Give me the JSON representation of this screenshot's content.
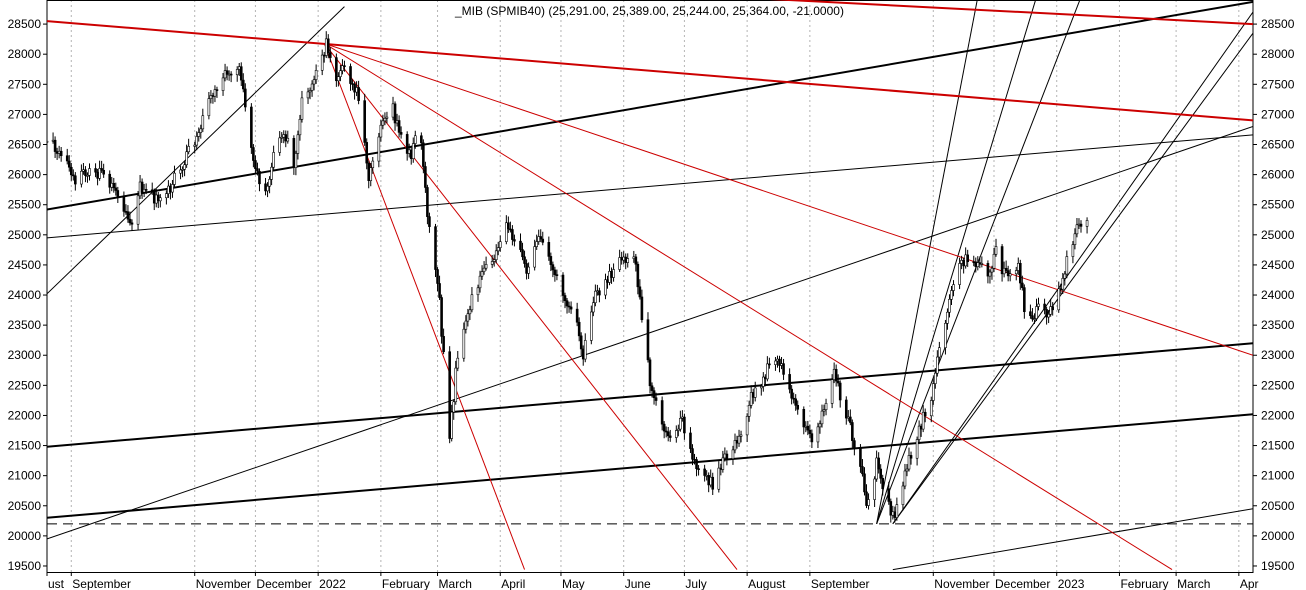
{
  "chart_data": {
    "type": "candlestick",
    "title": "_MIB (SPMIB40) (25,291.00, 25,389.00, 25,244.00, 25,364.00, -21.0000)",
    "ohlc": {
      "open": 25291,
      "high": 25389,
      "low": 25244,
      "close": 25364,
      "change": -21
    },
    "ylim": [
      19400,
      28900
    ],
    "y_ticks": [
      19500,
      20000,
      20500,
      21000,
      21500,
      22000,
      22500,
      23000,
      23500,
      24000,
      24500,
      25000,
      25500,
      26000,
      26500,
      27000,
      27500,
      28000,
      28500
    ],
    "x_axis": {
      "start": "2021-08-20",
      "end": "2023-04-08",
      "labels": [
        {
          "date": "2021-08-20",
          "label": "ust"
        },
        {
          "date": "2021-09-01",
          "label": "September"
        },
        {
          "date": "2021-11-01",
          "label": "November"
        },
        {
          "date": "2021-12-01",
          "label": "December"
        },
        {
          "date": "2022-01-01",
          "label": "2022"
        },
        {
          "date": "2022-02-01",
          "label": "February"
        },
        {
          "date": "2022-03-01",
          "label": "March"
        },
        {
          "date": "2022-04-01",
          "label": "April"
        },
        {
          "date": "2022-05-01",
          "label": "May"
        },
        {
          "date": "2022-06-01",
          "label": "June"
        },
        {
          "date": "2022-07-01",
          "label": "July"
        },
        {
          "date": "2022-08-01",
          "label": "August"
        },
        {
          "date": "2022-09-01",
          "label": "September"
        },
        {
          "date": "2022-11-01",
          "label": "November"
        },
        {
          "date": "2022-12-01",
          "label": "December"
        },
        {
          "date": "2023-01-01",
          "label": "2023"
        },
        {
          "date": "2023-02-01",
          "label": "February"
        },
        {
          "date": "2023-03-01",
          "label": "March"
        },
        {
          "date": "2023-04-01",
          "label": "Apr"
        }
      ]
    },
    "grid": {
      "vertical": "dashed",
      "horizontal": false
    },
    "reference_level": 20200,
    "price_path": [
      {
        "date": "2021-08-20",
        "close": 26550
      },
      {
        "date": "2021-08-27",
        "close": 26350
      },
      {
        "date": "2021-09-03",
        "close": 25900
      },
      {
        "date": "2021-09-10",
        "close": 26100
      },
      {
        "date": "2021-09-17",
        "close": 25950
      },
      {
        "date": "2021-09-24",
        "close": 25700
      },
      {
        "date": "2021-09-30",
        "close": 25100
      },
      {
        "date": "2021-10-05",
        "close": 25800
      },
      {
        "date": "2021-10-12",
        "close": 25600
      },
      {
        "date": "2021-10-20",
        "close": 25800
      },
      {
        "date": "2021-10-28",
        "close": 26300
      },
      {
        "date": "2021-11-03",
        "close": 26700
      },
      {
        "date": "2021-11-10",
        "close": 27400
      },
      {
        "date": "2021-11-17",
        "close": 27700
      },
      {
        "date": "2021-11-23",
        "close": 27850
      },
      {
        "date": "2021-11-26",
        "close": 27100
      },
      {
        "date": "2021-12-01",
        "close": 26100
      },
      {
        "date": "2021-12-06",
        "close": 25700
      },
      {
        "date": "2021-12-10",
        "close": 26300
      },
      {
        "date": "2021-12-15",
        "close": 26700
      },
      {
        "date": "2021-12-20",
        "close": 26200
      },
      {
        "date": "2021-12-24",
        "close": 27200
      },
      {
        "date": "2021-12-31",
        "close": 27700
      },
      {
        "date": "2022-01-05",
        "close": 28150
      },
      {
        "date": "2022-01-10",
        "close": 27600
      },
      {
        "date": "2022-01-14",
        "close": 27800
      },
      {
        "date": "2022-01-20",
        "close": 27400
      },
      {
        "date": "2022-01-26",
        "close": 26000
      },
      {
        "date": "2022-02-01",
        "close": 26800
      },
      {
        "date": "2022-02-07",
        "close": 27100
      },
      {
        "date": "2022-02-10",
        "close": 26700
      },
      {
        "date": "2022-02-16",
        "close": 26300
      },
      {
        "date": "2022-02-20",
        "close": 27000
      },
      {
        "date": "2022-02-24",
        "close": 25400
      },
      {
        "date": "2022-03-01",
        "close": 24300
      },
      {
        "date": "2022-03-07",
        "close": 21600
      },
      {
        "date": "2022-03-10",
        "close": 22700
      },
      {
        "date": "2022-03-16",
        "close": 23700
      },
      {
        "date": "2022-03-22",
        "close": 24300
      },
      {
        "date": "2022-03-28",
        "close": 24500
      },
      {
        "date": "2022-04-04",
        "close": 25100
      },
      {
        "date": "2022-04-08",
        "close": 24900
      },
      {
        "date": "2022-04-14",
        "close": 24400
      },
      {
        "date": "2022-04-20",
        "close": 24900
      },
      {
        "date": "2022-04-27",
        "close": 24500
      },
      {
        "date": "2022-05-03",
        "close": 24000
      },
      {
        "date": "2022-05-09",
        "close": 23500
      },
      {
        "date": "2022-05-12",
        "close": 23000
      },
      {
        "date": "2022-05-18",
        "close": 24000
      },
      {
        "date": "2022-05-25",
        "close": 24300
      },
      {
        "date": "2022-06-01",
        "close": 24600
      },
      {
        "date": "2022-06-07",
        "close": 24600
      },
      {
        "date": "2022-06-10",
        "close": 23500
      },
      {
        "date": "2022-06-14",
        "close": 22600
      },
      {
        "date": "2022-06-20",
        "close": 21900
      },
      {
        "date": "2022-06-24",
        "close": 21600
      },
      {
        "date": "2022-06-30",
        "close": 21900
      },
      {
        "date": "2022-07-05",
        "close": 21300
      },
      {
        "date": "2022-07-12",
        "close": 21000
      },
      {
        "date": "2022-07-15",
        "close": 20800
      },
      {
        "date": "2022-07-21",
        "close": 21300
      },
      {
        "date": "2022-07-28",
        "close": 21600
      },
      {
        "date": "2022-08-03",
        "close": 22300
      },
      {
        "date": "2022-08-10",
        "close": 22700
      },
      {
        "date": "2022-08-16",
        "close": 23000
      },
      {
        "date": "2022-08-22",
        "close": 22400
      },
      {
        "date": "2022-08-29",
        "close": 21900
      },
      {
        "date": "2022-09-02",
        "close": 21600
      },
      {
        "date": "2022-09-08",
        "close": 22100
      },
      {
        "date": "2022-09-13",
        "close": 22700
      },
      {
        "date": "2022-09-20",
        "close": 21900
      },
      {
        "date": "2022-09-26",
        "close": 21200
      },
      {
        "date": "2022-09-29",
        "close": 20400
      },
      {
        "date": "2022-10-04",
        "close": 21200
      },
      {
        "date": "2022-10-10",
        "close": 20500
      },
      {
        "date": "2022-10-13",
        "close": 20300
      },
      {
        "date": "2022-10-18",
        "close": 21000
      },
      {
        "date": "2022-10-25",
        "close": 21800
      },
      {
        "date": "2022-10-31",
        "close": 22300
      },
      {
        "date": "2022-11-04",
        "close": 23100
      },
      {
        "date": "2022-11-10",
        "close": 24100
      },
      {
        "date": "2022-11-15",
        "close": 24600
      },
      {
        "date": "2022-11-22",
        "close": 24500
      },
      {
        "date": "2022-11-28",
        "close": 24400
      },
      {
        "date": "2022-12-02",
        "close": 24700
      },
      {
        "date": "2022-12-07",
        "close": 24300
      },
      {
        "date": "2022-12-13",
        "close": 24500
      },
      {
        "date": "2022-12-16",
        "close": 23800
      },
      {
        "date": "2022-12-20",
        "close": 23500
      },
      {
        "date": "2022-12-23",
        "close": 23800
      },
      {
        "date": "2022-12-29",
        "close": 23700
      },
      {
        "date": "2023-01-03",
        "close": 24100
      },
      {
        "date": "2023-01-06",
        "close": 24600
      },
      {
        "date": "2023-01-11",
        "close": 25100
      },
      {
        "date": "2023-01-17",
        "close": 25364
      }
    ],
    "trend_lines": [
      {
        "color": "#000000",
        "width": 1,
        "from": {
          "date": "2021-08-20",
          "value": 24020
        },
        "to": {
          "date": "2022-01-14",
          "value": 28790
        }
      },
      {
        "color": "#000000",
        "width": 2,
        "from": {
          "date": "2021-08-20",
          "value": 25420
        },
        "to": {
          "date": "2023-04-08",
          "value": 28870
        }
      },
      {
        "color": "#000000",
        "width": 1,
        "from": {
          "date": "2021-08-20",
          "value": 24950
        },
        "to": {
          "date": "2023-04-08",
          "value": 26660
        }
      },
      {
        "color": "#000000",
        "width": 1,
        "from": {
          "date": "2021-08-20",
          "value": 19950
        },
        "to": {
          "date": "2023-04-08",
          "value": 26800
        }
      },
      {
        "color": "#000000",
        "width": 2,
        "from": {
          "date": "2021-08-20",
          "value": 21480
        },
        "to": {
          "date": "2023-04-08",
          "value": 23200
        }
      },
      {
        "color": "#000000",
        "width": 2,
        "from": {
          "date": "2021-08-20",
          "value": 20300
        },
        "to": {
          "date": "2023-04-08",
          "value": 22020
        }
      },
      {
        "color": "#000000",
        "width": 1,
        "from": {
          "date": "2022-10-12",
          "value": 19440
        },
        "to": {
          "date": "2023-04-08",
          "value": 20450
        }
      },
      {
        "color": "#000000",
        "width": 1,
        "from": {
          "date": "2022-10-04",
          "value": 20200
        },
        "to": {
          "date": "2022-11-23",
          "value": 28950
        }
      },
      {
        "color": "#000000",
        "width": 1,
        "from": {
          "date": "2022-10-04",
          "value": 20200
        },
        "to": {
          "date": "2022-12-22",
          "value": 28950
        }
      },
      {
        "color": "#000000",
        "width": 1,
        "from": {
          "date": "2022-10-04",
          "value": 20200
        },
        "to": {
          "date": "2023-01-13",
          "value": 28950
        }
      },
      {
        "color": "#000000",
        "width": 1,
        "from": {
          "date": "2022-10-12",
          "value": 20200
        },
        "to": {
          "date": "2023-04-08",
          "value": 28700
        }
      },
      {
        "color": "#000000",
        "width": 1,
        "from": {
          "date": "2022-10-12",
          "value": 20200
        },
        "to": {
          "date": "2023-04-08",
          "value": 28350
        }
      },
      {
        "color": "#cc0000",
        "width": 2,
        "from": {
          "date": "2021-08-20",
          "value": 28550
        },
        "to": {
          "date": "2023-04-08",
          "value": 26900
        }
      },
      {
        "color": "#cc0000",
        "width": 2,
        "from": {
          "date": "2022-07-24",
          "value": 28950
        },
        "to": {
          "date": "2023-04-08",
          "value": 28500
        }
      },
      {
        "color": "#cc0000",
        "width": 1,
        "from": {
          "date": "2022-01-04",
          "value": 28180
        },
        "to": {
          "date": "2022-04-13",
          "value": 19440
        }
      },
      {
        "color": "#cc0000",
        "width": 1,
        "from": {
          "date": "2022-01-04",
          "value": 28180
        },
        "to": {
          "date": "2022-07-27",
          "value": 19440
        }
      },
      {
        "color": "#cc0000",
        "width": 1,
        "from": {
          "date": "2022-01-04",
          "value": 28180
        },
        "to": {
          "date": "2023-02-27",
          "value": 19440
        }
      },
      {
        "color": "#cc0000",
        "width": 1,
        "from": {
          "date": "2022-01-04",
          "value": 28180
        },
        "to": {
          "date": "2023-04-08",
          "value": 23000
        }
      }
    ]
  }
}
